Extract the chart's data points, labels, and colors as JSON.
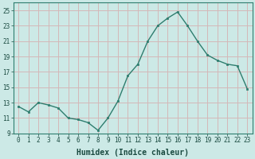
{
  "x": [
    0,
    1,
    2,
    3,
    4,
    5,
    6,
    7,
    8,
    9,
    10,
    11,
    12,
    13,
    14,
    15,
    16,
    17,
    18,
    19,
    20,
    21,
    22,
    23
  ],
  "y": [
    12.5,
    11.8,
    13.0,
    12.7,
    12.3,
    11.0,
    10.8,
    10.4,
    9.4,
    11.0,
    13.2,
    16.5,
    18.0,
    21.0,
    23.0,
    24.0,
    24.8,
    23.0,
    21.0,
    19.2,
    18.5,
    18.0,
    17.8,
    14.8
  ],
  "xlabel": "Humidex (Indice chaleur)",
  "bg_color": "#cce9e6",
  "line_color": "#2e7d6e",
  "marker_color": "#2e7d6e",
  "grid_color": "#d4b8b8",
  "ylim": [
    9,
    26
  ],
  "yticks": [
    9,
    11,
    13,
    15,
    17,
    19,
    21,
    23,
    25
  ],
  "xticks": [
    0,
    1,
    2,
    3,
    4,
    5,
    6,
    7,
    8,
    9,
    10,
    11,
    12,
    13,
    14,
    15,
    16,
    17,
    18,
    19,
    20,
    21,
    22,
    23
  ],
  "tick_label_fontsize": 5.5,
  "xlabel_fontsize": 7.0,
  "linewidth": 1.0,
  "markersize": 2.0
}
